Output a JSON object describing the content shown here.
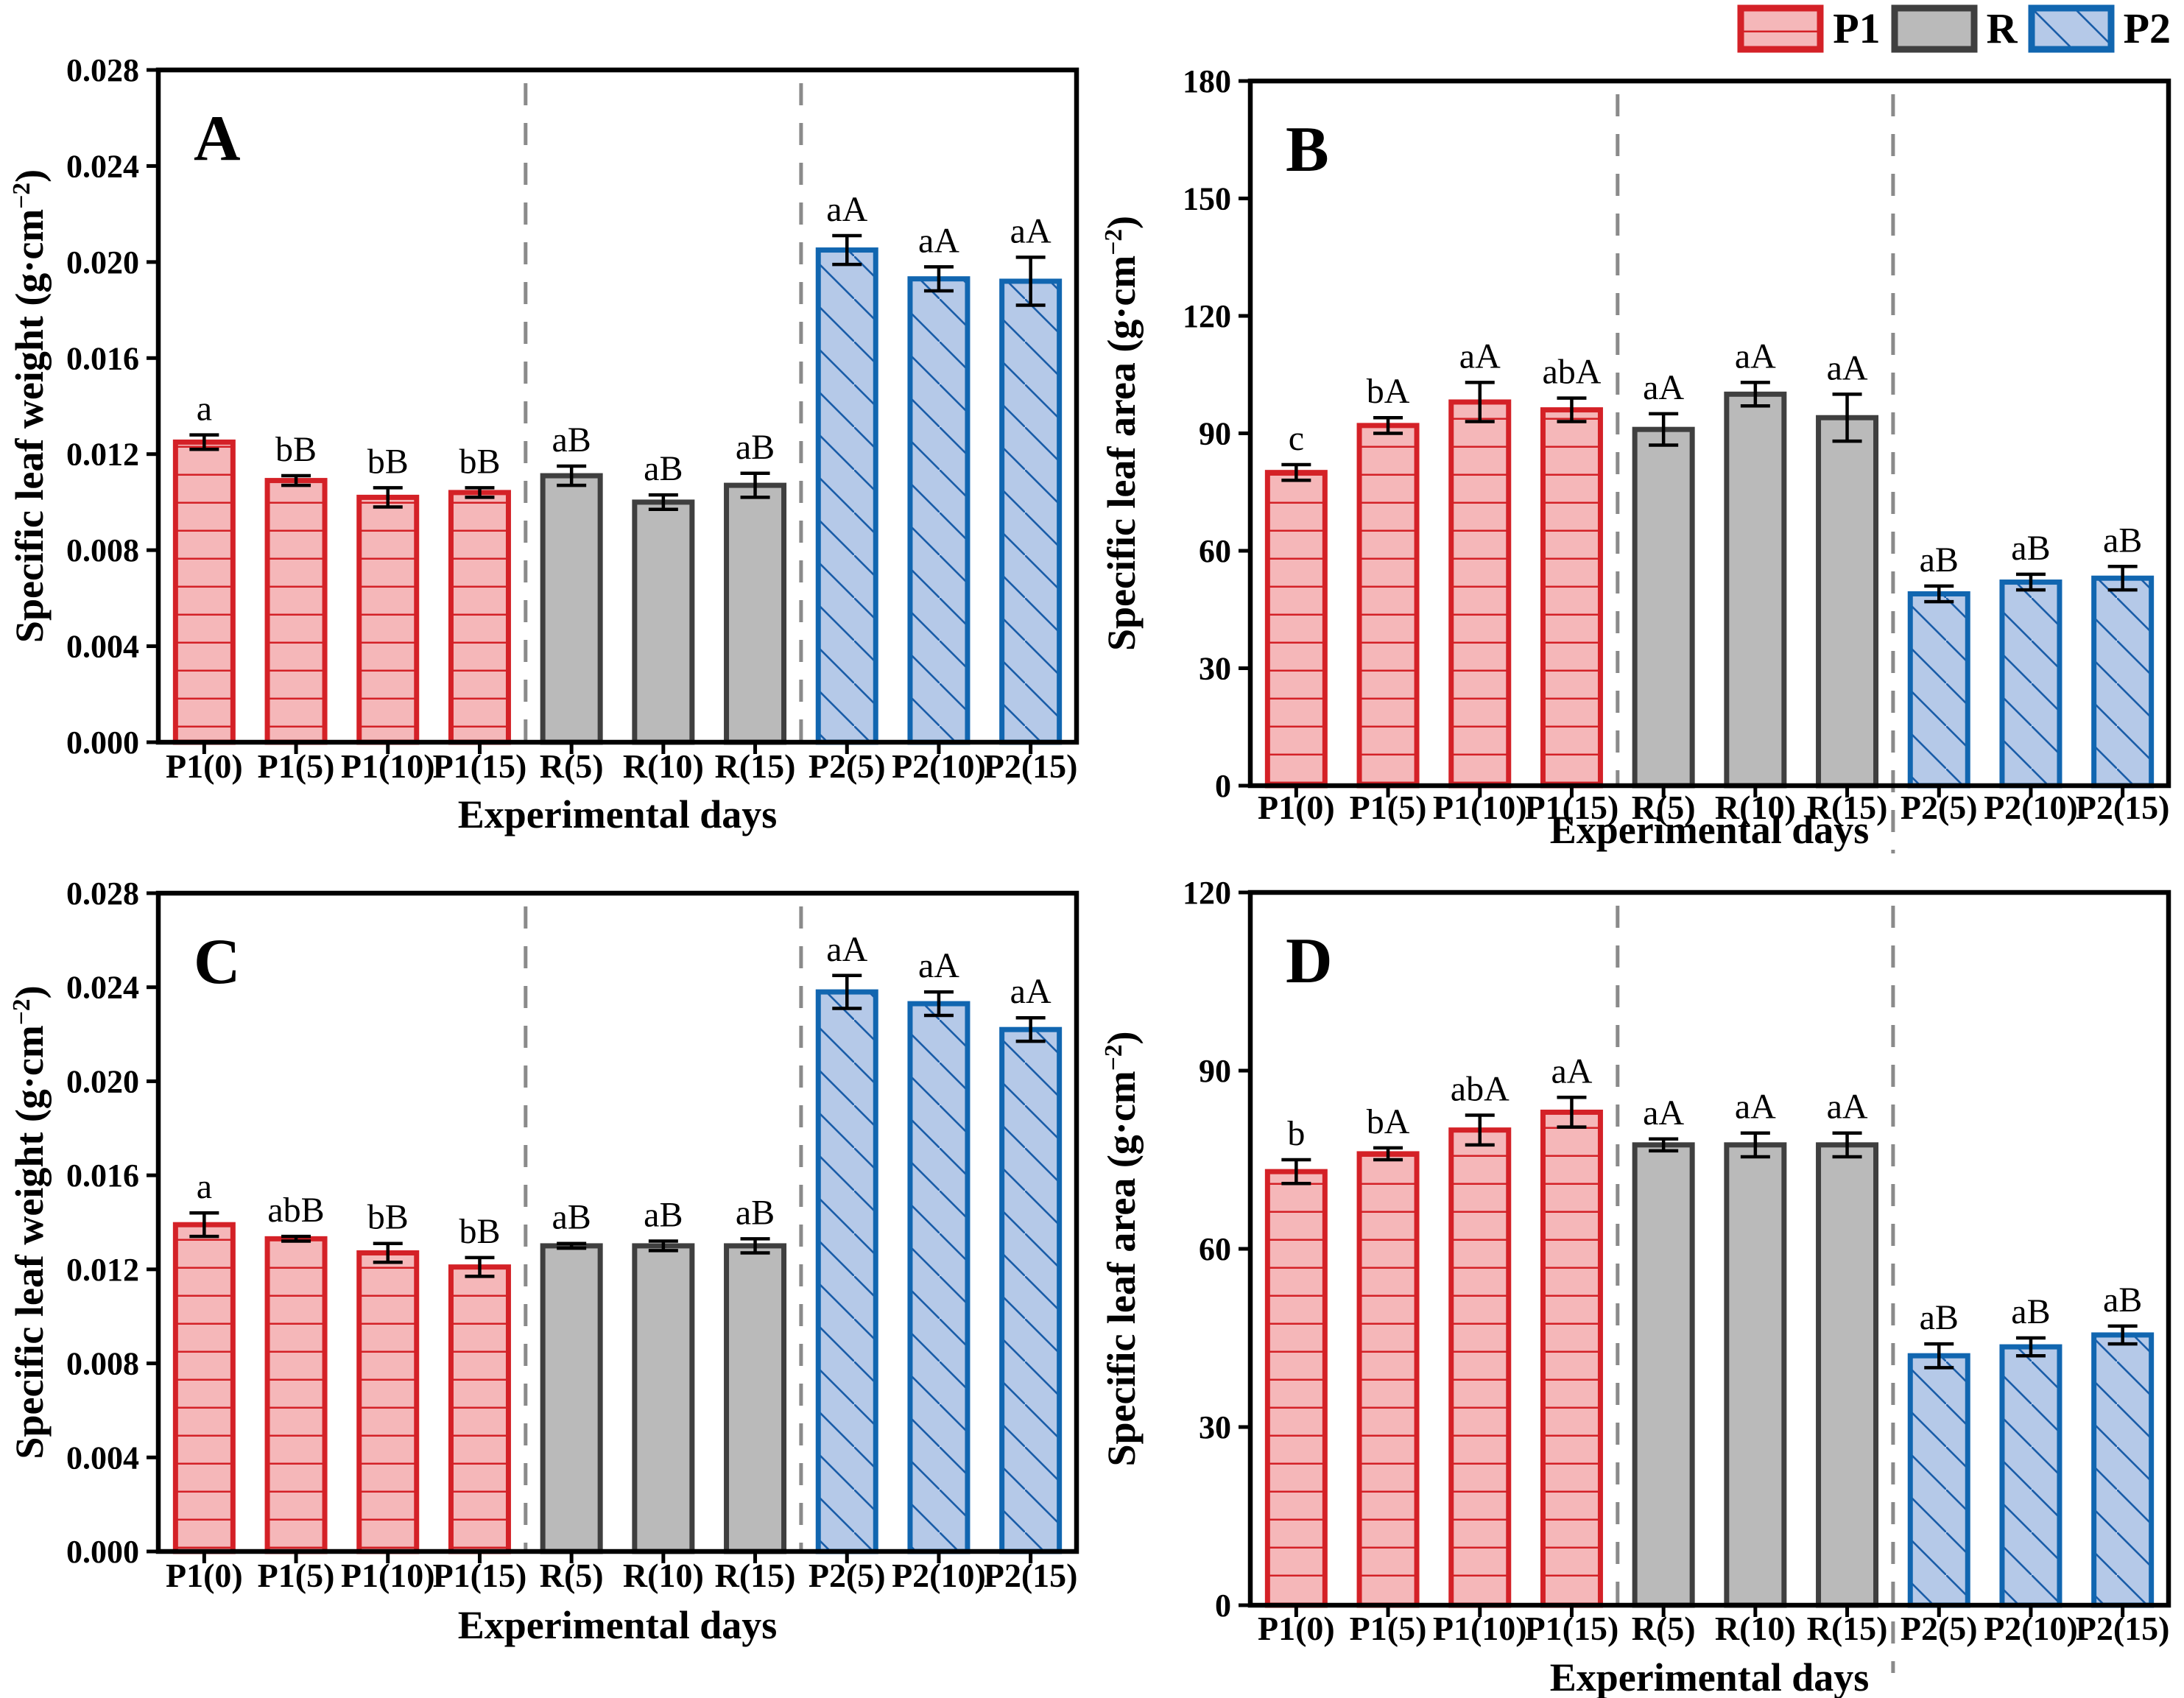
{
  "legend": {
    "items": [
      {
        "label": "P1",
        "group": "P1"
      },
      {
        "label": "R",
        "group": "R"
      },
      {
        "label": "P2",
        "group": "P2"
      }
    ]
  },
  "styles": {
    "p1_fill": "#f5b7b9",
    "p1_stroke": "#d42127",
    "p1_hatch": "#d42127",
    "r_fill": "#bababa",
    "r_stroke": "#3f3f3f",
    "p2_fill": "#b5c9e8",
    "p2_stroke": "#1166b0",
    "p2_hatch": "#1a5da8",
    "error_bar_color": "#000000",
    "separator_color": "#8a8a8a",
    "axis_color": "#000000"
  },
  "chart_data": [
    {
      "id": "A",
      "type": "bar",
      "panel_label": "A",
      "ylabel": "Specific leaf weight (g·cm⁻²)",
      "xlabel": "Experimental days",
      "ylim": [
        0,
        0.028
      ],
      "yticks": [
        "0.000",
        "0.004",
        "0.008",
        "0.012",
        "0.016",
        "0.020",
        "0.024",
        "0.028"
      ],
      "categories": [
        "P1(0)",
        "P1(5)",
        "P1(10)",
        "P1(15)",
        "R(5)",
        "R(10)",
        "R(15)",
        "P2(5)",
        "P2(10)",
        "P2(15)"
      ],
      "groups": [
        "P1",
        "P1",
        "P1",
        "P1",
        "R",
        "R",
        "R",
        "P2",
        "P2",
        "P2"
      ],
      "values": [
        0.0125,
        0.0109,
        0.0102,
        0.0104,
        0.0111,
        0.01,
        0.0107,
        0.0205,
        0.0193,
        0.0192
      ],
      "errors": [
        0.0003,
        0.0002,
        0.0004,
        0.0002,
        0.0004,
        0.0003,
        0.0005,
        0.0006,
        0.0005,
        0.001
      ],
      "sig_labels": [
        "a",
        "bB",
        "bB",
        "bB",
        "aB",
        "aB",
        "aB",
        "aA",
        "aA",
        "aA"
      ],
      "separators_after_index": [
        3,
        6
      ],
      "separators_extend_below_axis": false,
      "grid": false,
      "legend_position": "top-right-of-figure"
    },
    {
      "id": "B",
      "type": "bar",
      "panel_label": "B",
      "ylabel": "Specific leaf area (g·cm⁻²)",
      "xlabel": "Experimental days",
      "ylim": [
        0,
        180
      ],
      "yticks": [
        "0",
        "30",
        "60",
        "90",
        "120",
        "150",
        "180"
      ],
      "categories": [
        "P1(0)",
        "P1(5)",
        "P1(10)",
        "P1(15)",
        "R(5)",
        "R(10)",
        "R(15)",
        "P2(5)",
        "P2(10)",
        "P2(15)"
      ],
      "groups": [
        "P1",
        "P1",
        "P1",
        "P1",
        "R",
        "R",
        "R",
        "P2",
        "P2",
        "P2"
      ],
      "values": [
        80,
        92,
        98,
        96,
        91,
        100,
        94,
        49,
        52,
        53
      ],
      "errors": [
        2,
        2,
        5,
        3,
        4,
        3,
        6,
        2,
        2,
        3
      ],
      "sig_labels": [
        "c",
        "bA",
        "aA",
        "abA",
        "aA",
        "aA",
        "aA",
        "aB",
        "aB",
        "aB"
      ],
      "separators_after_index": [
        3,
        6
      ],
      "separators_extend_below_axis": true,
      "grid": false,
      "legend_position": "top-right-of-figure"
    },
    {
      "id": "C",
      "type": "bar",
      "panel_label": "C",
      "ylabel": "Specific leaf weight (g·cm⁻²)",
      "xlabel": "Experimental days",
      "ylim": [
        0,
        0.028
      ],
      "yticks": [
        "0.000",
        "0.004",
        "0.008",
        "0.012",
        "0.016",
        "0.020",
        "0.024",
        "0.028"
      ],
      "categories": [
        "P1(0)",
        "P1(5)",
        "P1(10)",
        "P1(15)",
        "R(5)",
        "R(10)",
        "R(15)",
        "P2(5)",
        "P2(10)",
        "P2(15)"
      ],
      "groups": [
        "P1",
        "P1",
        "P1",
        "P1",
        "R",
        "R",
        "R",
        "P2",
        "P2",
        "P2"
      ],
      "values": [
        0.0139,
        0.0133,
        0.0127,
        0.0121,
        0.013,
        0.013,
        0.013,
        0.0238,
        0.0233,
        0.0222
      ],
      "errors": [
        0.0005,
        0.0001,
        0.0004,
        0.0004,
        0.0001,
        0.0002,
        0.0003,
        0.0007,
        0.0005,
        0.0005
      ],
      "sig_labels": [
        "a",
        "abB",
        "bB",
        "bB",
        "aB",
        "aB",
        "aB",
        "aA",
        "aA",
        "aA"
      ],
      "separators_after_index": [
        3,
        6
      ],
      "separators_extend_below_axis": false,
      "grid": false,
      "legend_position": "top-right-of-figure"
    },
    {
      "id": "D",
      "type": "bar",
      "panel_label": "D",
      "ylabel": "Specific leaf area (g·cm⁻²)",
      "xlabel": "Experimental days",
      "ylim": [
        0,
        120
      ],
      "yticks": [
        "0",
        "30",
        "60",
        "90",
        "120"
      ],
      "categories": [
        "P1(0)",
        "P1(5)",
        "P1(10)",
        "P1(15)",
        "R(5)",
        "R(10)",
        "R(15)",
        "P2(5)",
        "P2(10)",
        "P2(15)"
      ],
      "groups": [
        "P1",
        "P1",
        "P1",
        "P1",
        "R",
        "R",
        "R",
        "P2",
        "P2",
        "P2"
      ],
      "values": [
        73,
        76,
        80,
        83,
        77.5,
        77.5,
        77.5,
        42,
        43.5,
        45.5
      ],
      "errors": [
        2,
        1,
        2.5,
        2.5,
        1,
        2,
        2,
        2,
        1.5,
        1.5
      ],
      "sig_labels": [
        "b",
        "bA",
        "abA",
        "aA",
        "aA",
        "aA",
        "aA",
        "aB",
        "aB",
        "aB"
      ],
      "separators_after_index": [
        3,
        6
      ],
      "separators_extend_below_axis": true,
      "grid": false,
      "legend_position": "top-right-of-figure"
    }
  ]
}
